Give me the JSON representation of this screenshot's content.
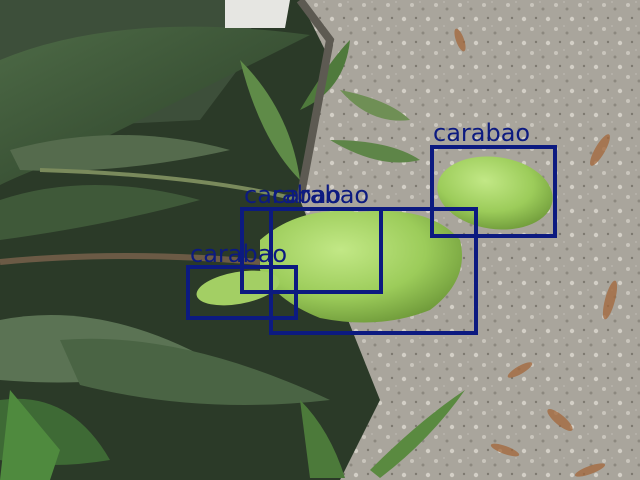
{
  "scene": {
    "subject": "mango fruits on a tree with leaves over gravel ground",
    "palette": {
      "ground": "#a9a59c",
      "leaf_dark": "#2f4a2c",
      "leaf_light": "#6f8f55",
      "mango": "#9ccc5a",
      "annotation": "#0c1a80"
    }
  },
  "detections": [
    {
      "label": "carabao"
    },
    {
      "label": "carabao"
    },
    {
      "label": "carabao"
    },
    {
      "label": "carabao"
    }
  ]
}
